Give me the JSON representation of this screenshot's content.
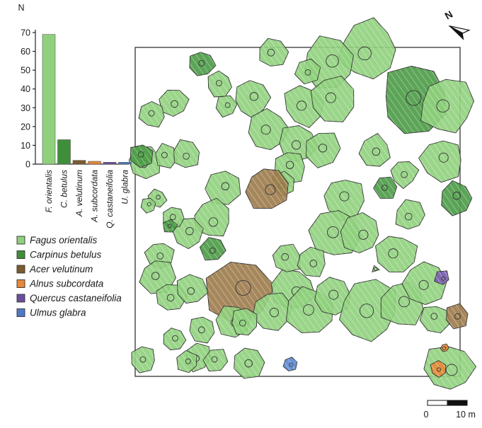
{
  "chart_data": [
    {
      "type": "bar",
      "ylabel": "N",
      "ylim": [
        0,
        70
      ],
      "yticks": [
        0,
        10,
        20,
        30,
        40,
        50,
        60,
        70
      ],
      "categories": [
        "F. orientalis",
        "C. betulus",
        "A. velutinum",
        "A. subcordata",
        "Q. castaneifolia",
        "U. glabra"
      ],
      "values": [
        69,
        13,
        2,
        1.5,
        1,
        1
      ],
      "colors": [
        "#8fd07c",
        "#3f8f3a",
        "#7a5a2e",
        "#e8883a",
        "#6b4d9e",
        "#4f79c8"
      ]
    },
    {
      "type": "map",
      "legend": [
        {
          "label": "Fagus orientalis",
          "color": "#8fd07c"
        },
        {
          "label": "Carpinus betulus",
          "color": "#3f8f3a"
        },
        {
          "label": "Acer velutinum",
          "color": "#7a5a2e"
        },
        {
          "label": "Alnus subcordata",
          "color": "#e8883a"
        },
        {
          "label": "Quercus castaneifolia",
          "color": "#6b4d9e"
        },
        {
          "label": "Ulmus glabra",
          "color": "#4f79c8"
        }
      ],
      "north_label": "N",
      "scale_bar": {
        "start_label": "0",
        "end_label": "10 m"
      }
    }
  ]
}
